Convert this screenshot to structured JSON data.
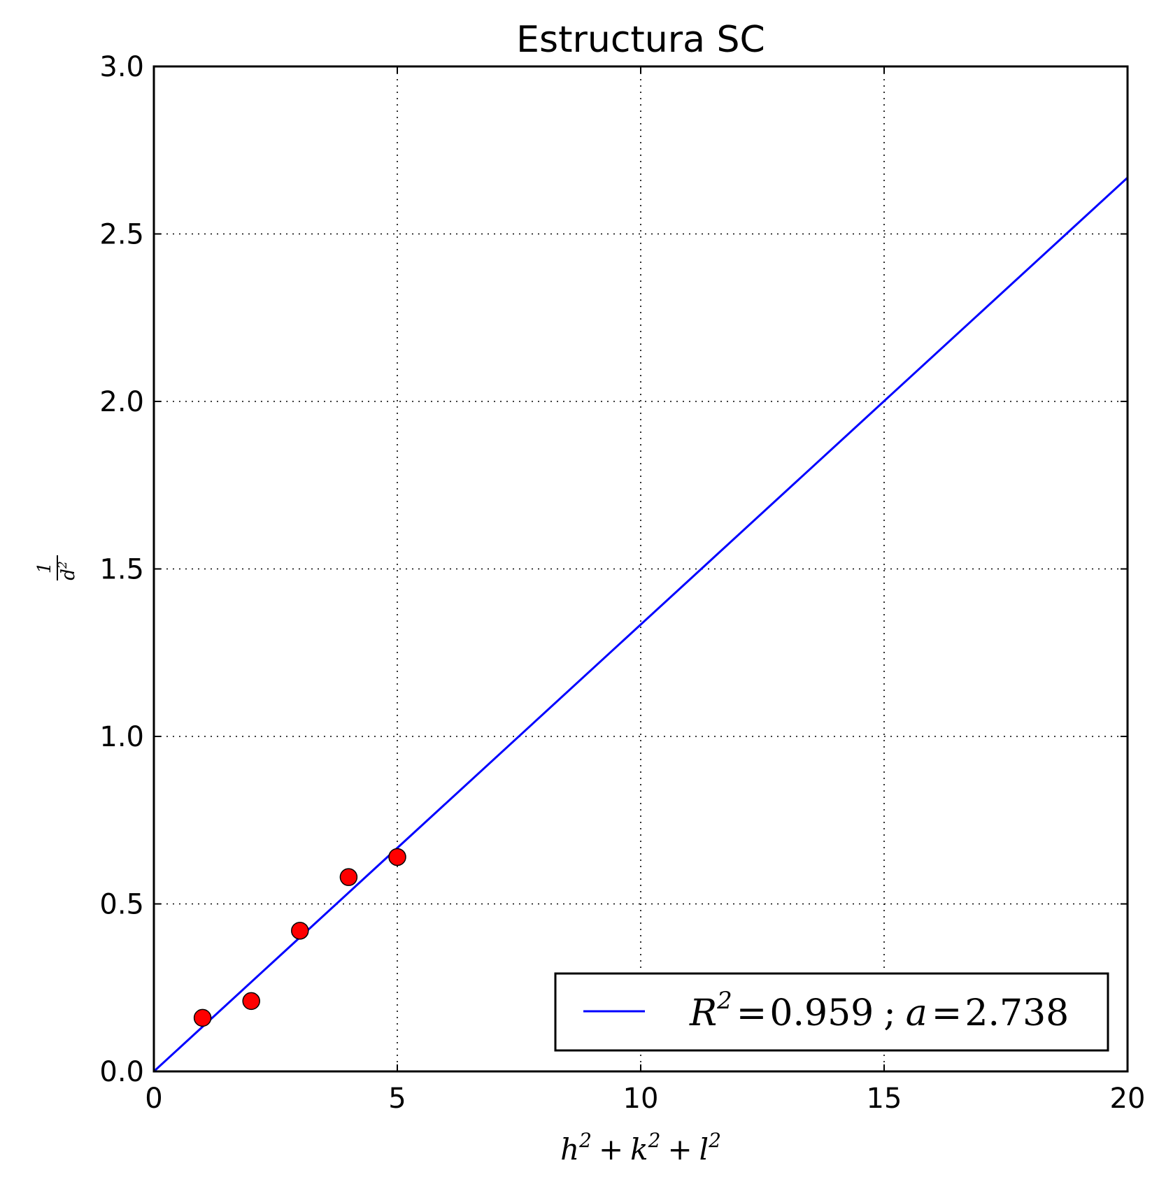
{
  "chart_data": {
    "type": "scatter",
    "title": "Estructura SC",
    "xlabel": {
      "base": [
        "h",
        "k",
        "l"
      ],
      "sup": "2",
      "op": "+"
    },
    "ylabel": {
      "numerator": "1",
      "denominator": "d",
      "sup": "2"
    },
    "xlim": [
      0,
      20
    ],
    "ylim": [
      0,
      3.0
    ],
    "x_ticks": [
      "0",
      "5",
      "10",
      "15",
      "20"
    ],
    "y_ticks": [
      "0.0",
      "0.5",
      "1.0",
      "1.5",
      "2.0",
      "2.5",
      "3.0"
    ],
    "grid": true,
    "points": [
      {
        "x": 1,
        "y": 0.16
      },
      {
        "x": 2,
        "y": 0.21
      },
      {
        "x": 3,
        "y": 0.42
      },
      {
        "x": 4,
        "y": 0.58
      },
      {
        "x": 5,
        "y": 0.64
      }
    ],
    "fit_line": {
      "slope": 0.1334,
      "intercept": 0
    },
    "legend": {
      "position": "bottom-right",
      "symbol": "R",
      "sup": "2",
      "eq": "=",
      "r2_value": "0.959",
      "separator": ";",
      "param_symbol": "a",
      "param_value": "2.738"
    },
    "colors": {
      "points": "#ff0000",
      "line": "#0000ff",
      "axes": "#000000"
    }
  }
}
